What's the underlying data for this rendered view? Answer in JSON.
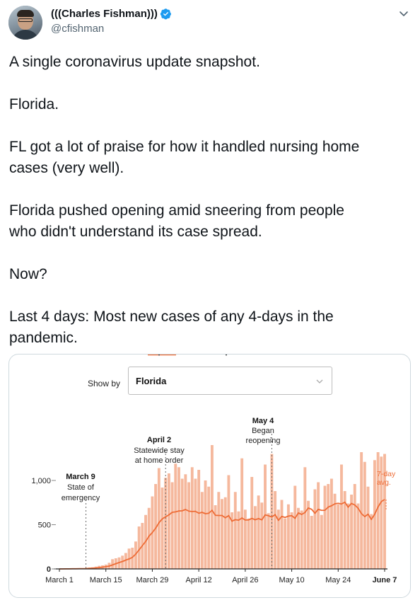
{
  "tweet": {
    "display_name": "(((Charles Fishman)))",
    "handle": "@cfishman",
    "paragraphs": [
      [
        "A single coronavirus update snapshot."
      ],
      [
        "Florida."
      ],
      [
        "FL got a lot of praise for how it handled nursing home",
        "cases (very well)."
      ],
      [
        "Florida pushed opening amid sneering from people",
        "who didn't understand its case spread."
      ],
      [
        "Now?"
      ],
      [
        "Last 4 days: Most new cases of any 4-days in the",
        "pandemic."
      ]
    ]
  },
  "colors": {
    "bar": "#f5b89d",
    "line": "#ee6c36",
    "axis": "#222222",
    "verified": "#1d9bf0",
    "annotation_line": "#666666"
  },
  "icons": {
    "verified": "verified-badge-icon",
    "more": "chevron-down-icon",
    "select": "chevron-down-icon"
  },
  "media": {
    "show_by_label": "Show by",
    "select_value": "Florida"
  },
  "chart_data": {
    "type": "bar",
    "title": "",
    "xlabel": "",
    "ylabel": "",
    "ylim": [
      0,
      1300
    ],
    "yticks": [
      {
        "value": 0,
        "label": "0"
      },
      {
        "value": 500,
        "label": "500"
      },
      {
        "value": 1000,
        "label": "1,000"
      }
    ],
    "x_tick_labels": [
      {
        "day": 0,
        "label": "March 1"
      },
      {
        "day": 14,
        "label": "March 15"
      },
      {
        "day": 28,
        "label": "March 29"
      },
      {
        "day": 42,
        "label": "April 12"
      },
      {
        "day": 56,
        "label": "April 26"
      },
      {
        "day": 70,
        "label": "May 10"
      },
      {
        "day": 84,
        "label": "May 24"
      },
      {
        "day": 98,
        "label": "June 7"
      }
    ],
    "start_date": "March 1",
    "daily_new_cases": [
      0,
      0,
      2,
      2,
      2,
      4,
      5,
      5,
      9,
      16,
      18,
      26,
      35,
      40,
      49,
      69,
      110,
      120,
      130,
      150,
      180,
      230,
      240,
      310,
      480,
      520,
      610,
      690,
      820,
      960,
      1140,
      920,
      1030,
      1080,
      980,
      1190,
      1150,
      1020,
      1070,
      980,
      1150,
      1020,
      1120,
      870,
      1000,
      930,
      1400,
      720,
      870,
      790,
      810,
      1060,
      640,
      870,
      650,
      1250,
      670,
      570,
      1040,
      710,
      830,
      750,
      1180,
      630,
      1300,
      880,
      670,
      780,
      570,
      730,
      640,
      940,
      690,
      660,
      1150,
      770,
      600,
      900,
      980,
      610,
      940,
      960,
      1020,
      850,
      730,
      1180,
      880,
      740,
      840,
      960,
      740,
      1320,
      1210,
      930,
      620,
      1230,
      1320,
      1270,
      1300
    ],
    "seven_day_avg": [
      0,
      0,
      1,
      1,
      2,
      2,
      3,
      3,
      4,
      6,
      9,
      11,
      15,
      20,
      25,
      32,
      45,
      59,
      72,
      84,
      100,
      113,
      131,
      168,
      215,
      263,
      311,
      370,
      411,
      460,
      522,
      566,
      589,
      611,
      640,
      645,
      655,
      657,
      672,
      653,
      649,
      651,
      630,
      640,
      624,
      629,
      663,
      606,
      604,
      604,
      578,
      603,
      540,
      557,
      551,
      576,
      553,
      554,
      571,
      556,
      569,
      555,
      611,
      601,
      587,
      614,
      549,
      594,
      582,
      597,
      602,
      572,
      633,
      616,
      638,
      689,
      674,
      629,
      674,
      662,
      663,
      699,
      714,
      736,
      742,
      734,
      755,
      698,
      741,
      723,
      686,
      626,
      591,
      619,
      559,
      619,
      699,
      761,
      785
    ],
    "series": [
      {
        "name": "",
        "values_key": "daily_new_cases",
        "kind": "bar"
      },
      {
        "name": "7-day avg.",
        "values_key": "seven_day_avg",
        "kind": "line"
      }
    ],
    "annotations": [
      {
        "day": 8,
        "title": "March 9",
        "lines": [
          "State of",
          "emergency"
        ]
      },
      {
        "day": 32,
        "title": "April 2",
        "lines": [
          "Statewide stay",
          "at home order"
        ]
      },
      {
        "day": 64,
        "title": "May 4",
        "lines": [
          "Began",
          "reopening"
        ]
      }
    ],
    "line_label": [
      "7-day",
      "avg."
    ]
  }
}
